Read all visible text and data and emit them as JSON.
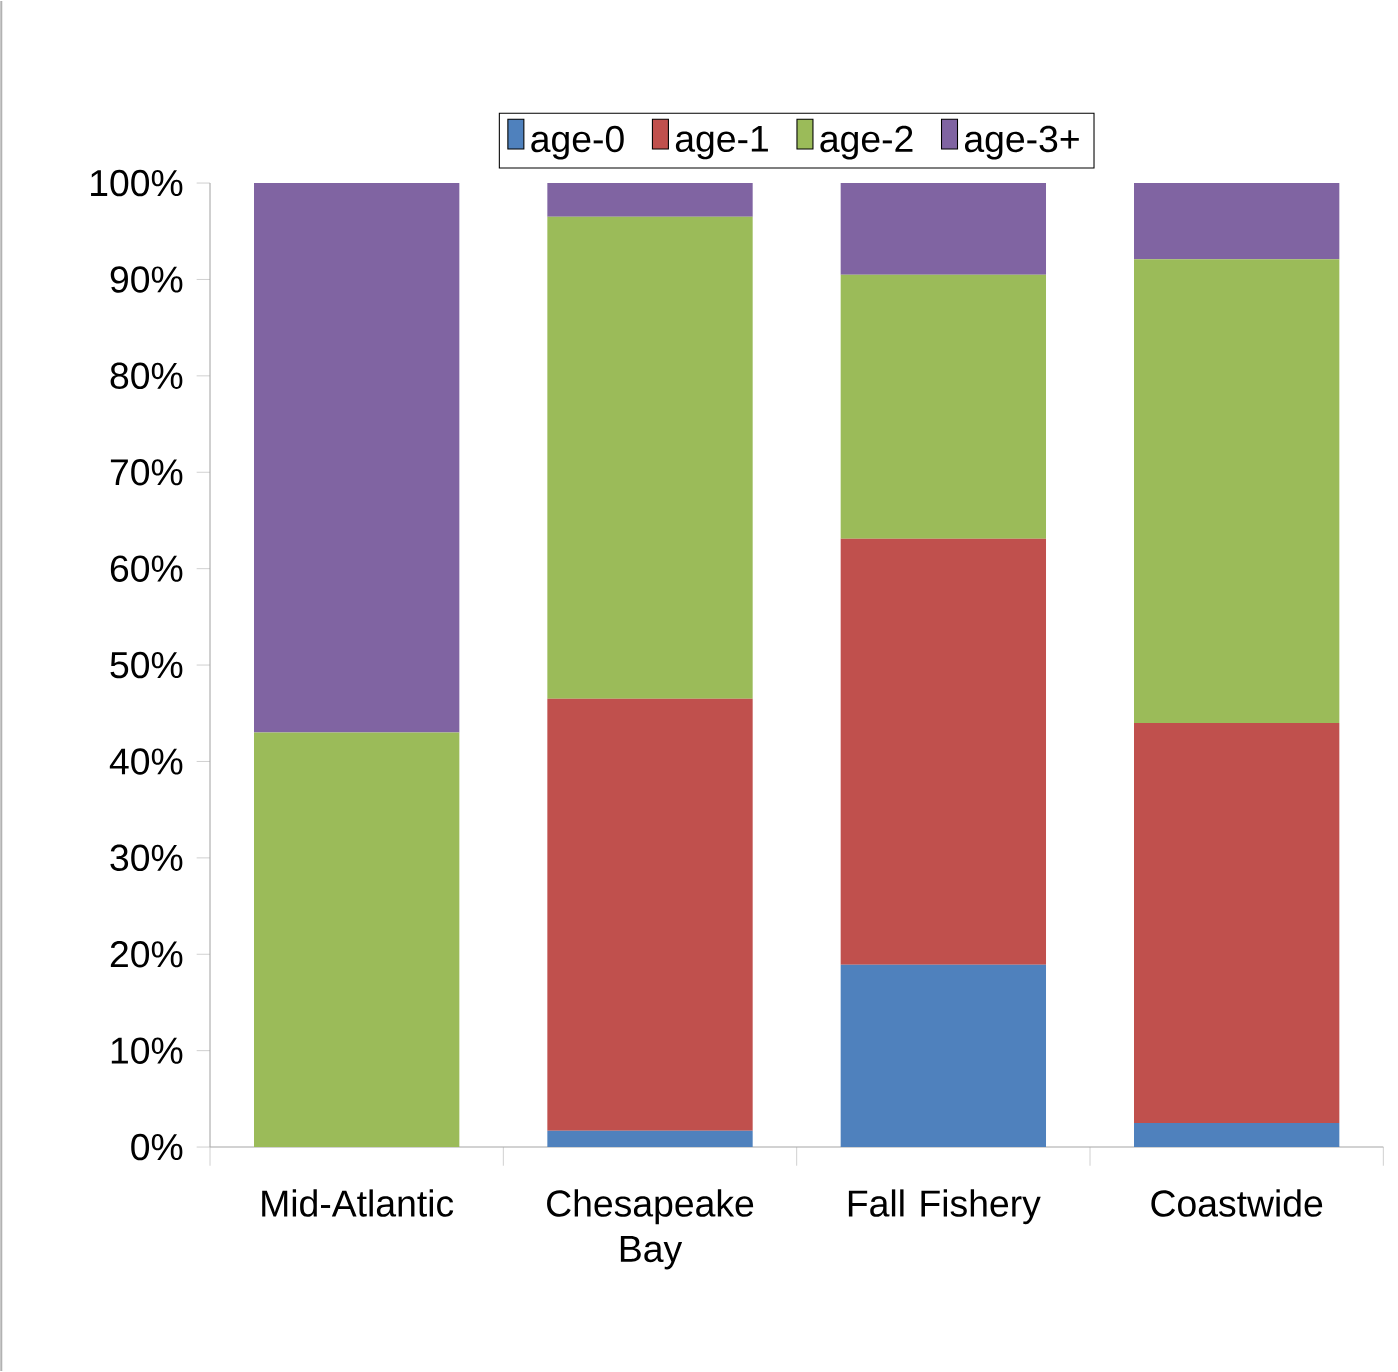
{
  "chart_data": {
    "type": "bar",
    "stacked": true,
    "categories": [
      "Mid-Atlantic",
      "Chesapeake Bay",
      "Fall Fishery",
      "Coastwide"
    ],
    "series": [
      {
        "name": "age-0",
        "color": "#4f81bd",
        "values": [
          0,
          1.7,
          18.9,
          2.5
        ]
      },
      {
        "name": "age-1",
        "color": "#c0504d",
        "values": [
          0,
          44.8,
          44.2,
          41.5
        ]
      },
      {
        "name": "age-2",
        "color": "#9bbb59",
        "values": [
          43,
          50,
          27.4,
          48.1
        ]
      },
      {
        "name": "age-3+",
        "color": "#8064a2",
        "values": [
          57,
          3.5,
          9.5,
          7.9
        ]
      }
    ],
    "ylim": [
      0,
      100
    ],
    "yticks": [
      {
        "value": 0,
        "label": "0%"
      },
      {
        "value": 10,
        "label": "10%"
      },
      {
        "value": 20,
        "label": "20%"
      },
      {
        "value": 30,
        "label": "30%"
      },
      {
        "value": 40,
        "label": "40%"
      },
      {
        "value": 50,
        "label": "50%"
      },
      {
        "value": 60,
        "label": "60%"
      },
      {
        "value": 70,
        "label": "70%"
      },
      {
        "value": 80,
        "label": "80%"
      },
      {
        "value": 90,
        "label": "90%"
      },
      {
        "value": 100,
        "label": "100%"
      }
    ],
    "grid": false,
    "legend": "top"
  }
}
